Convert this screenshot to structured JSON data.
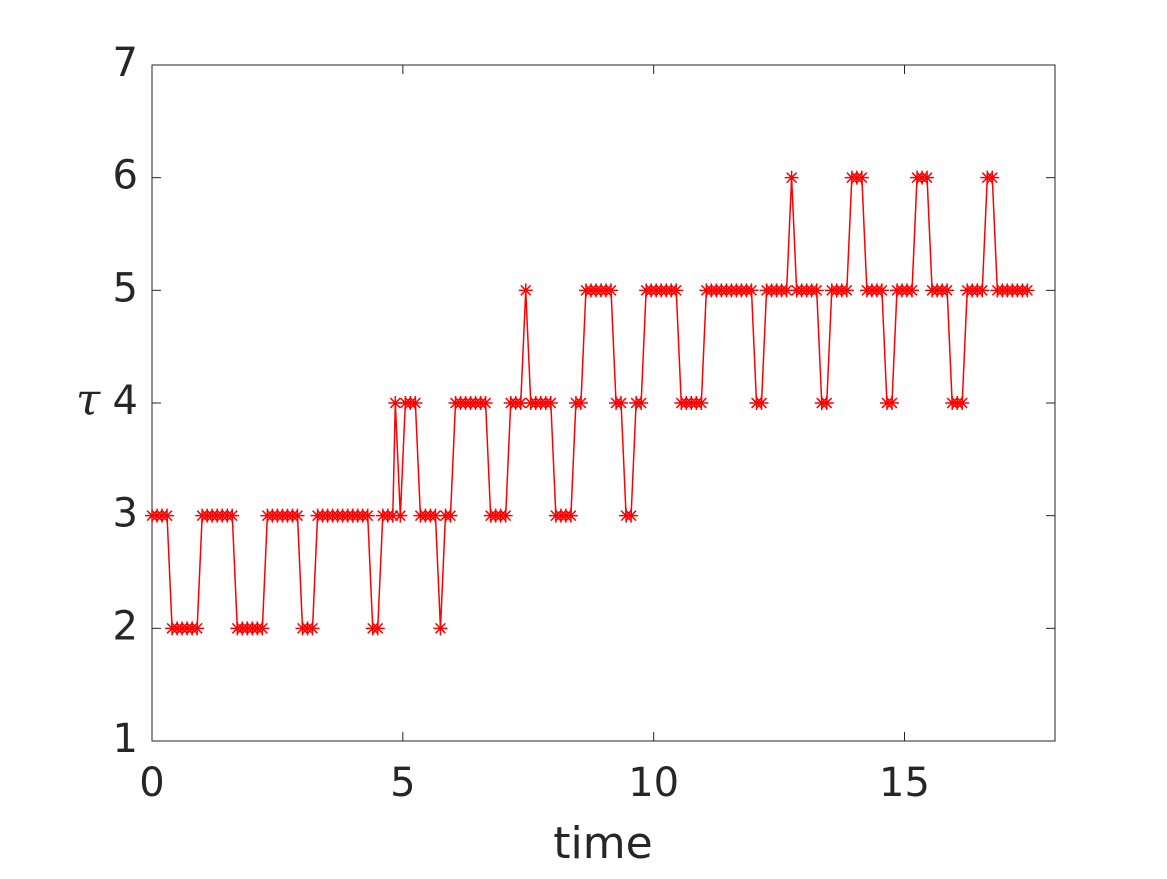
{
  "chart_data": {
    "type": "line",
    "xlabel": "time",
    "ylabel": "τ",
    "xlim": [
      0,
      18
    ],
    "ylim": [
      1,
      7
    ],
    "xticks": [
      0,
      5,
      10,
      15
    ],
    "yticks": [
      1,
      2,
      3,
      4,
      5,
      6,
      7
    ],
    "grid": false,
    "marker": "asterisk",
    "x": [
      0,
      0.1,
      0.2,
      0.3,
      0.4,
      0.5,
      0.6,
      0.7,
      0.8,
      0.9,
      1.0,
      1.1,
      1.2,
      1.3,
      1.4,
      1.5,
      1.6,
      1.7,
      1.8,
      1.9,
      2.0,
      2.1,
      2.2,
      2.3,
      2.4,
      2.5,
      2.6,
      2.7,
      2.8,
      2.9,
      3.0,
      3.1,
      3.2,
      3.3,
      3.4,
      3.5,
      3.6,
      3.7,
      3.8,
      3.9,
      4.0,
      4.1,
      4.2,
      4.3,
      4.4,
      4.5,
      4.6,
      4.7,
      4.8,
      4.85,
      4.95,
      5.05,
      5.15,
      5.25,
      5.35,
      5.45,
      5.55,
      5.65,
      5.75,
      5.85,
      5.95,
      6.05,
      6.15,
      6.25,
      6.35,
      6.45,
      6.55,
      6.65,
      6.75,
      6.85,
      6.95,
      7.05,
      7.15,
      7.25,
      7.35,
      7.45,
      7.55,
      7.65,
      7.75,
      7.85,
      7.95,
      8.05,
      8.15,
      8.25,
      8.35,
      8.45,
      8.55,
      8.65,
      8.75,
      8.85,
      8.95,
      9.05,
      9.15,
      9.25,
      9.35,
      9.45,
      9.55,
      9.65,
      9.75,
      9.85,
      9.95,
      10.05,
      10.15,
      10.25,
      10.35,
      10.45,
      10.55,
      10.65,
      10.75,
      10.85,
      10.95,
      11.05,
      11.15,
      11.25,
      11.35,
      11.45,
      11.55,
      11.65,
      11.75,
      11.85,
      11.95,
      12.05,
      12.15,
      12.25,
      12.35,
      12.45,
      12.55,
      12.65,
      12.75,
      12.85,
      12.95,
      13.05,
      13.15,
      13.25,
      13.35,
      13.45,
      13.55,
      13.65,
      13.75,
      13.85,
      13.95,
      14.05,
      14.15,
      14.25,
      14.35,
      14.45,
      14.55,
      14.65,
      14.75,
      14.85,
      14.95,
      15.05,
      15.15,
      15.25,
      15.35,
      15.45,
      15.55,
      15.65,
      15.75,
      15.85,
      15.95,
      16.05,
      16.15,
      16.25,
      16.35,
      16.45,
      16.55,
      16.65,
      16.75,
      16.85,
      16.95,
      17.05,
      17.15,
      17.25,
      17.35,
      17.45
    ],
    "series": [
      {
        "color": "#ff0000",
        "values": [
          3,
          3,
          3,
          3,
          2,
          2,
          2,
          2,
          2,
          2,
          3,
          3,
          3,
          3,
          3,
          3,
          3,
          2,
          2,
          2,
          2,
          2,
          2,
          3,
          3,
          3,
          3,
          3,
          3,
          3,
          2,
          2,
          2,
          3,
          3,
          3,
          3,
          3,
          3,
          3,
          3,
          3,
          3,
          3,
          2,
          2,
          3,
          3,
          3,
          4,
          3,
          4,
          4,
          4,
          3,
          3,
          3,
          3,
          2,
          3,
          3,
          4,
          4,
          4,
          4,
          4,
          4,
          4,
          3,
          3,
          3,
          3,
          4,
          4,
          4,
          5,
          4,
          4,
          4,
          4,
          4,
          3,
          3,
          3,
          3,
          4,
          4,
          5,
          5,
          5,
          5,
          5,
          5,
          4,
          4,
          3,
          3,
          4,
          4,
          5,
          5,
          5,
          5,
          5,
          5,
          5,
          4,
          4,
          4,
          4,
          4,
          5,
          5,
          5,
          5,
          5,
          5,
          5,
          5,
          5,
          5,
          4,
          4,
          5,
          5,
          5,
          5,
          5,
          6,
          5,
          5,
          5,
          5,
          5,
          4,
          4,
          5,
          5,
          5,
          5,
          6,
          6,
          6,
          5,
          5,
          5,
          5,
          4,
          4,
          5,
          5,
          5,
          5,
          6,
          6,
          6,
          5,
          5,
          5,
          5,
          4,
          4,
          4,
          5,
          5,
          5,
          5,
          6,
          6,
          5,
          5,
          5,
          5,
          5,
          5,
          5
        ]
      }
    ]
  }
}
